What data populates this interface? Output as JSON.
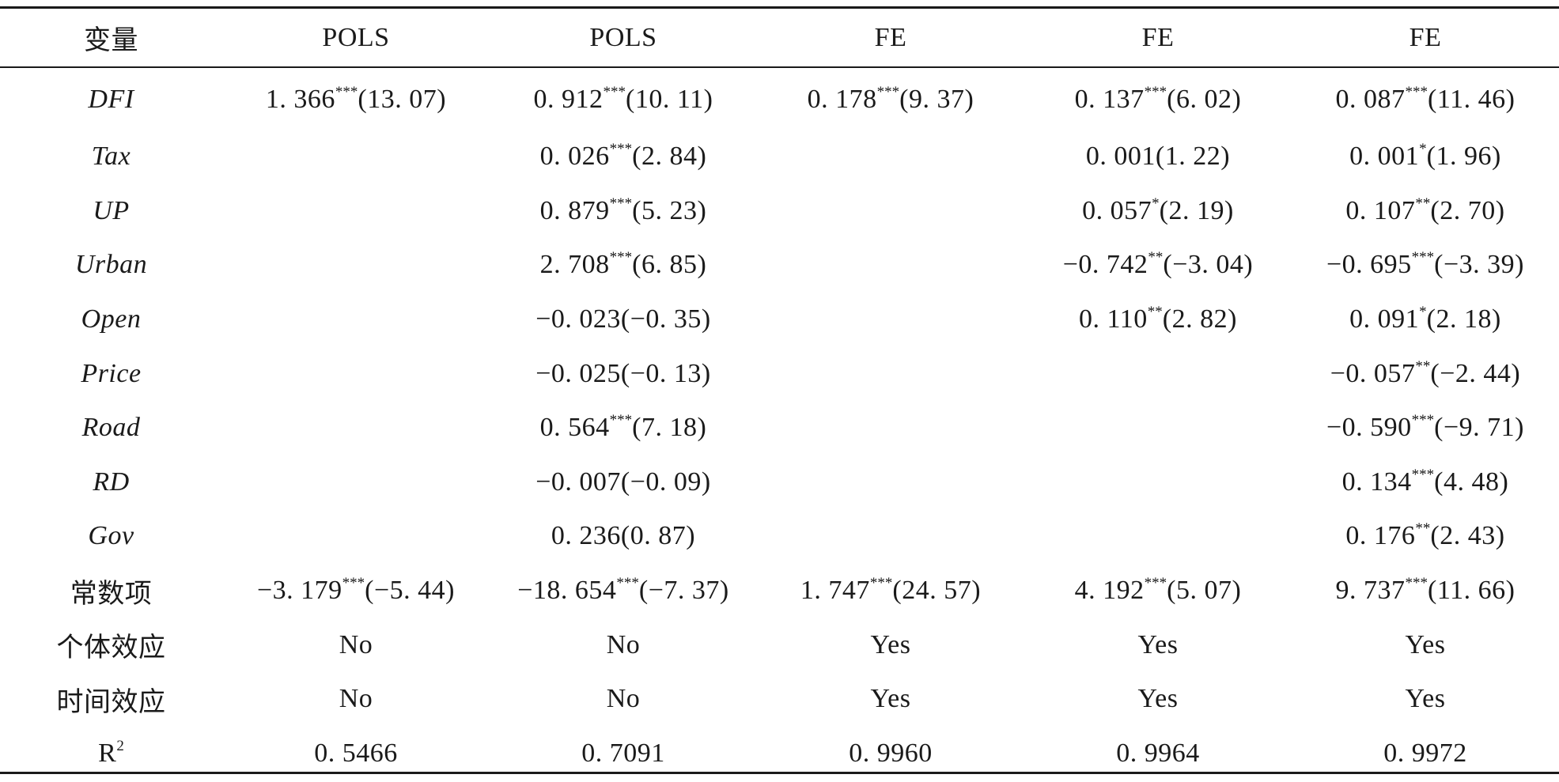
{
  "table": {
    "headers": [
      "变量",
      "POLS",
      "POLS",
      "FE",
      "FE",
      "FE"
    ],
    "rows": [
      {
        "label": "DFI",
        "italic": true,
        "cells": [
          {
            "coef": "1. 366",
            "stars": "***",
            "t": "(13. 07)"
          },
          {
            "coef": "0. 912",
            "stars": "***",
            "t": "(10. 11)"
          },
          {
            "coef": "0. 178",
            "stars": "***",
            "t": "(9. 37)"
          },
          {
            "coef": "0. 137",
            "stars": "***",
            "t": "(6. 02)"
          },
          {
            "coef": "0. 087",
            "stars": "***",
            "t": "(11. 46)"
          }
        ]
      },
      {
        "label": "Tax",
        "italic": true,
        "cells": [
          {
            "coef": "",
            "stars": "",
            "t": ""
          },
          {
            "coef": "0. 026",
            "stars": "***",
            "t": "(2. 84)"
          },
          {
            "coef": "",
            "stars": "",
            "t": ""
          },
          {
            "coef": "0. 001",
            "stars": "",
            "t": "(1. 22)"
          },
          {
            "coef": "0. 001",
            "stars": "*",
            "t": "(1. 96)"
          }
        ]
      },
      {
        "label": "UP",
        "italic": true,
        "cells": [
          {
            "coef": "",
            "stars": "",
            "t": ""
          },
          {
            "coef": "0. 879",
            "stars": "***",
            "t": "(5. 23)"
          },
          {
            "coef": "",
            "stars": "",
            "t": ""
          },
          {
            "coef": "0. 057",
            "stars": "*",
            "t": "(2. 19)"
          },
          {
            "coef": "0. 107",
            "stars": "**",
            "t": "(2. 70)"
          }
        ]
      },
      {
        "label": "Urban",
        "italic": true,
        "cells": [
          {
            "coef": "",
            "stars": "",
            "t": ""
          },
          {
            "coef": "2. 708",
            "stars": "***",
            "t": "(6. 85)"
          },
          {
            "coef": "",
            "stars": "",
            "t": ""
          },
          {
            "coef": "−0. 742",
            "stars": "**",
            "t": "(−3. 04)"
          },
          {
            "coef": "−0. 695",
            "stars": "***",
            "t": "(−3. 39)"
          }
        ]
      },
      {
        "label": "Open",
        "italic": true,
        "cells": [
          {
            "coef": "",
            "stars": "",
            "t": ""
          },
          {
            "coef": "−0. 023",
            "stars": "",
            "t": "(−0. 35)"
          },
          {
            "coef": "",
            "stars": "",
            "t": ""
          },
          {
            "coef": "0. 110",
            "stars": "**",
            "t": "(2. 82)"
          },
          {
            "coef": "0. 091",
            "stars": "*",
            "t": "(2. 18)"
          }
        ]
      },
      {
        "label": "Price",
        "italic": true,
        "cells": [
          {
            "coef": "",
            "stars": "",
            "t": ""
          },
          {
            "coef": "−0. 025",
            "stars": "",
            "t": "(−0. 13)"
          },
          {
            "coef": "",
            "stars": "",
            "t": ""
          },
          {
            "coef": "",
            "stars": "",
            "t": ""
          },
          {
            "coef": "−0. 057",
            "stars": "**",
            "t": "(−2. 44)"
          }
        ]
      },
      {
        "label": "Road",
        "italic": true,
        "cells": [
          {
            "coef": "",
            "stars": "",
            "t": ""
          },
          {
            "coef": "0. 564",
            "stars": "***",
            "t": "(7. 18)"
          },
          {
            "coef": "",
            "stars": "",
            "t": ""
          },
          {
            "coef": "",
            "stars": "",
            "t": ""
          },
          {
            "coef": "−0. 590",
            "stars": "***",
            "t": "(−9. 71)"
          }
        ]
      },
      {
        "label": "RD",
        "italic": true,
        "cells": [
          {
            "coef": "",
            "stars": "",
            "t": ""
          },
          {
            "coef": "−0. 007",
            "stars": "",
            "t": "(−0. 09)"
          },
          {
            "coef": "",
            "stars": "",
            "t": ""
          },
          {
            "coef": "",
            "stars": "",
            "t": ""
          },
          {
            "coef": "0. 134",
            "stars": "***",
            "t": "(4. 48)"
          }
        ]
      },
      {
        "label": "Gov",
        "italic": true,
        "cells": [
          {
            "coef": "",
            "stars": "",
            "t": ""
          },
          {
            "coef": "0. 236",
            "stars": "",
            "t": "(0. 87)"
          },
          {
            "coef": "",
            "stars": "",
            "t": ""
          },
          {
            "coef": "",
            "stars": "",
            "t": ""
          },
          {
            "coef": "0. 176",
            "stars": "**",
            "t": "(2. 43)"
          }
        ]
      },
      {
        "label": "常数项",
        "italic": false,
        "cells": [
          {
            "coef": "−3. 179",
            "stars": "***",
            "t": "(−5. 44)"
          },
          {
            "coef": "−18. 654",
            "stars": "***",
            "t": "(−7. 37)"
          },
          {
            "coef": "1. 747",
            "stars": "***",
            "t": "(24. 57)"
          },
          {
            "coef": "4. 192",
            "stars": "***",
            "t": "(5. 07)"
          },
          {
            "coef": "9. 737",
            "stars": "***",
            "t": "(11. 66)"
          }
        ]
      },
      {
        "label": "个体效应",
        "italic": false,
        "cells": [
          {
            "coef": "No",
            "stars": "",
            "t": ""
          },
          {
            "coef": "No",
            "stars": "",
            "t": ""
          },
          {
            "coef": "Yes",
            "stars": "",
            "t": ""
          },
          {
            "coef": "Yes",
            "stars": "",
            "t": ""
          },
          {
            "coef": "Yes",
            "stars": "",
            "t": ""
          }
        ]
      },
      {
        "label": "时间效应",
        "italic": false,
        "cells": [
          {
            "coef": "No",
            "stars": "",
            "t": ""
          },
          {
            "coef": "No",
            "stars": "",
            "t": ""
          },
          {
            "coef": "Yes",
            "stars": "",
            "t": ""
          },
          {
            "coef": "Yes",
            "stars": "",
            "t": ""
          },
          {
            "coef": "Yes",
            "stars": "",
            "t": ""
          }
        ]
      }
    ],
    "r2": {
      "label": "R",
      "sup": "2",
      "values": [
        "0. 5466",
        "0. 7091",
        "0. 9960",
        "0. 9964",
        "0. 9972"
      ]
    }
  }
}
